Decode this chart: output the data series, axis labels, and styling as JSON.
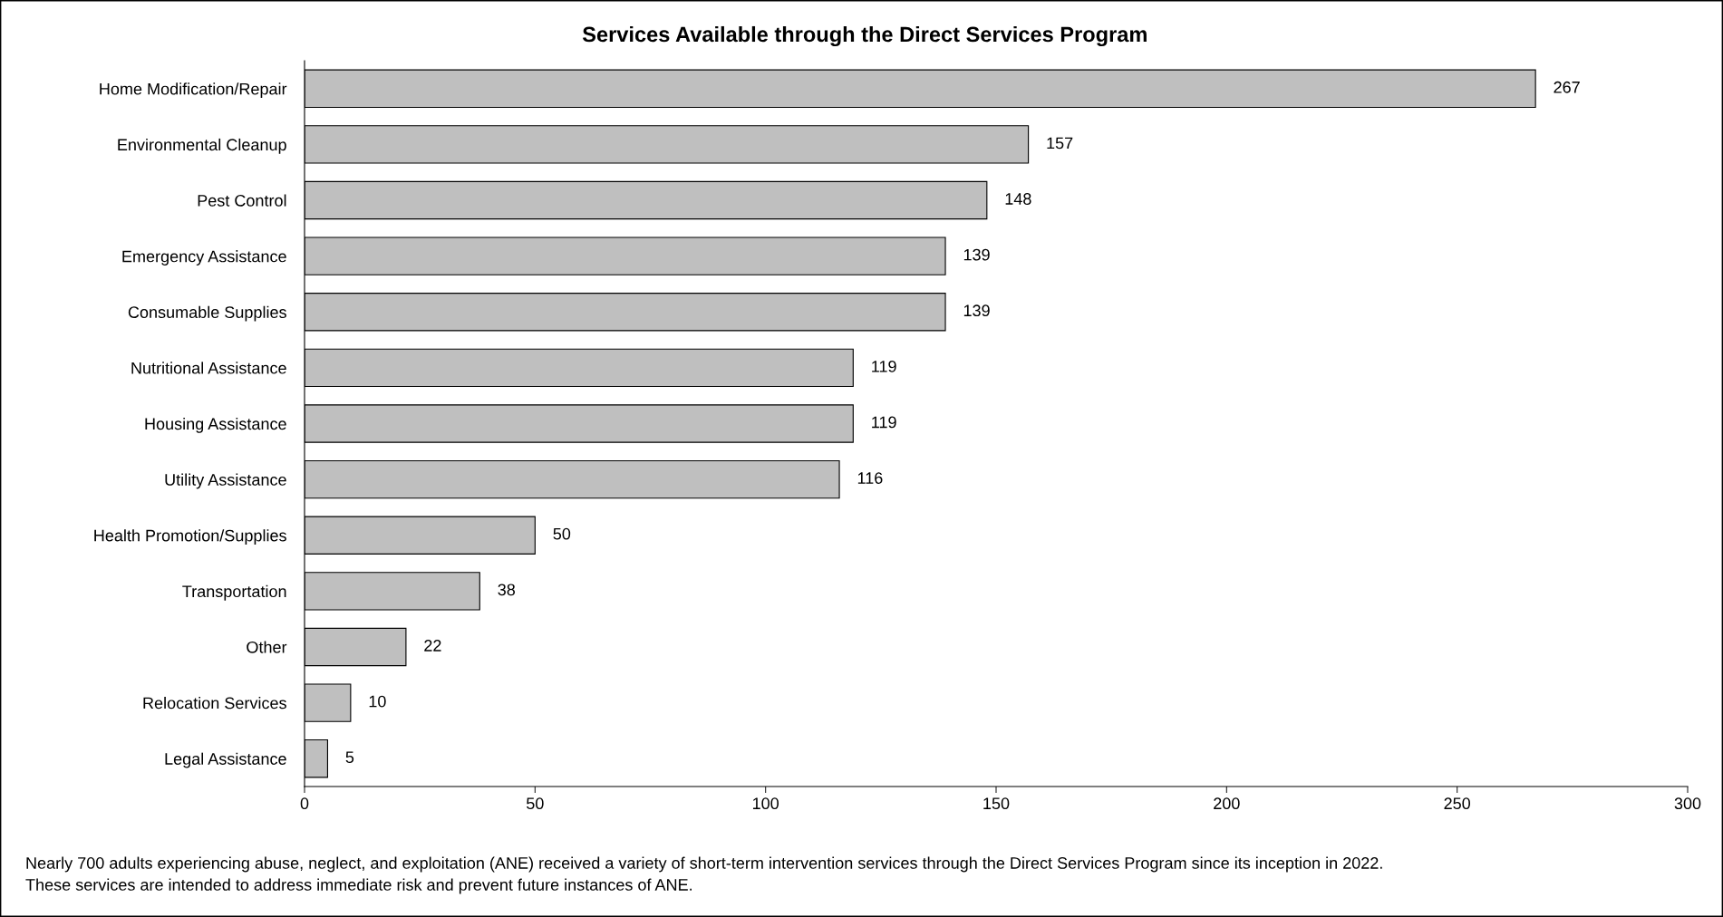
{
  "chart_data": {
    "type": "bar",
    "orientation": "horizontal",
    "title": "Services Available through the Direct Services Program",
    "categories": [
      "Home Modification/Repair",
      "Environmental Cleanup",
      "Pest Control",
      "Emergency Assistance",
      "Consumable Supplies",
      "Nutritional Assistance",
      "Housing Assistance",
      "Utility Assistance",
      "Health Promotion/Supplies",
      "Transportation",
      "Other",
      "Relocation Services",
      "Legal Assistance"
    ],
    "values": [
      267,
      157,
      148,
      139,
      139,
      119,
      119,
      116,
      50,
      38,
      22,
      10,
      5
    ],
    "color": "#bfbfbf",
    "xlim": [
      0,
      300
    ],
    "xticks": [
      0,
      50,
      100,
      150,
      200,
      250,
      300
    ],
    "data_labels": true,
    "grid": false,
    "annotations": [
      "Nearly 700 adults experiencing abuse, neglect, and exploitation (ANE) received a variety of short-term intervention services through the Direct Services Program since its inception in 2022.",
      "These services are intended to address immediate risk and prevent future instances of ANE."
    ]
  }
}
